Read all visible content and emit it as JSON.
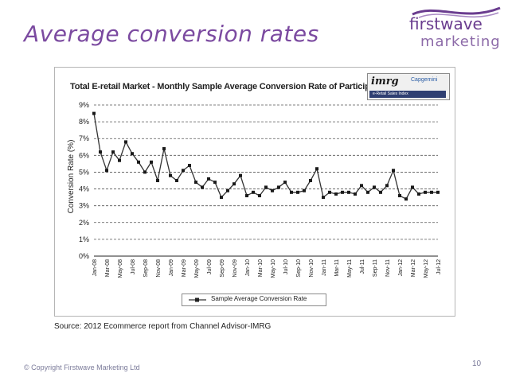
{
  "slide": {
    "title": "Average conversion rates",
    "logo_line1": "firstwave",
    "logo_line2": "marketing",
    "source": "Source: 2012 Ecommerce report from Channel Advisor-IMRG",
    "footer": "© Copyright Firstwave Marketing Ltd",
    "page_number": "10"
  },
  "badge": {
    "imrg": "imrg",
    "capgemini": "Capgemini",
    "index": "e-Retail Sales Index"
  },
  "colors": {
    "title": "#7b4aa0",
    "series": "#333333",
    "grid": "#555555"
  },
  "chart_data": {
    "type": "line",
    "title": "Total E-retail Market - Monthly Sample Average Conversion Rate of Participants",
    "xlabel": "",
    "ylabel": "Conversion Rate (%)",
    "ylim": [
      0,
      9
    ],
    "yticks": [
      "0%",
      "1%",
      "2%",
      "3%",
      "4%",
      "5%",
      "6%",
      "7%",
      "8%",
      "9%"
    ],
    "grid": true,
    "legend_position": "bottom-center",
    "x_tick_labels": [
      "Jan-08",
      "Mar-08",
      "May-08",
      "Jul-08",
      "Sep-08",
      "Nov-08",
      "Jan-09",
      "Mar-09",
      "May-09",
      "Jul-09",
      "Sep-09",
      "Nov-09",
      "Jan-10",
      "Mar-10",
      "May-10",
      "Jul-10",
      "Sep-10",
      "Nov-10",
      "Jan-11",
      "Mar-11",
      "May-11",
      "Jul-11",
      "Sep-11",
      "Nov-11",
      "Jan-12",
      "Mar-12",
      "May-12",
      "Jul-12"
    ],
    "series": [
      {
        "name": "Sample Average Conversion Rate",
        "values": [
          8.5,
          6.2,
          5.1,
          6.2,
          5.7,
          6.8,
          6.1,
          5.6,
          5.0,
          5.6,
          4.5,
          6.4,
          4.8,
          4.5,
          5.1,
          5.4,
          4.4,
          4.1,
          4.6,
          4.4,
          3.5,
          3.9,
          4.3,
          4.8,
          3.6,
          3.8,
          3.6,
          4.1,
          3.9,
          4.1,
          4.4,
          3.8,
          3.8,
          3.9,
          4.5,
          5.2,
          3.5,
          3.8,
          3.7,
          3.8,
          3.8,
          3.7,
          4.2,
          3.8,
          4.1,
          3.8,
          4.2,
          5.1,
          3.6,
          3.4,
          4.1,
          3.7,
          3.8,
          3.8,
          3.8
        ]
      }
    ]
  }
}
